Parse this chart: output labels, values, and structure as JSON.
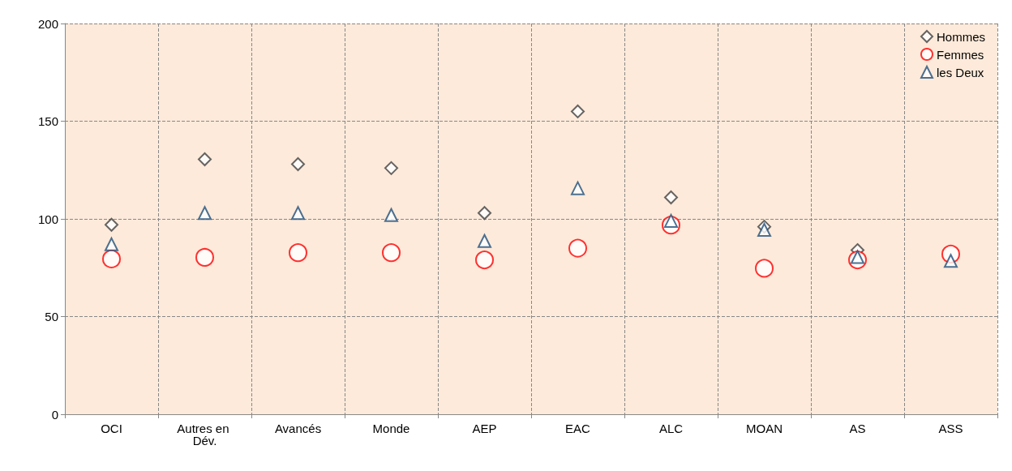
{
  "chart_data": {
    "type": "scatter",
    "categories": [
      "OCI",
      "Autres en Dév.",
      "Avancés",
      "Monde",
      "AEP",
      "EAC",
      "ALC",
      "MOAN",
      "AS",
      "ASS"
    ],
    "series": [
      {
        "name": "Hommes",
        "color": "#404040",
        "marker": "diamond",
        "values": [
          97,
          130.5,
          128,
          126,
          103,
          155,
          111,
          96,
          84,
          null
        ]
      },
      {
        "name": "Femmes",
        "color": "#ff0000",
        "marker": "circle",
        "values": [
          79.5,
          80.3,
          82.7,
          82.7,
          79,
          85,
          96.8,
          74.7,
          79,
          82
        ]
      },
      {
        "name": "les Deux",
        "color": "#1f4e79",
        "marker": "triangle",
        "values": [
          87,
          103,
          103,
          102,
          88.7,
          115.7,
          99,
          94.4,
          80.5,
          78.5
        ]
      }
    ],
    "ylim": [
      0,
      200
    ],
    "yticks": [
      0,
      50,
      100,
      150,
      200
    ],
    "grid": true,
    "legend": "top right"
  }
}
